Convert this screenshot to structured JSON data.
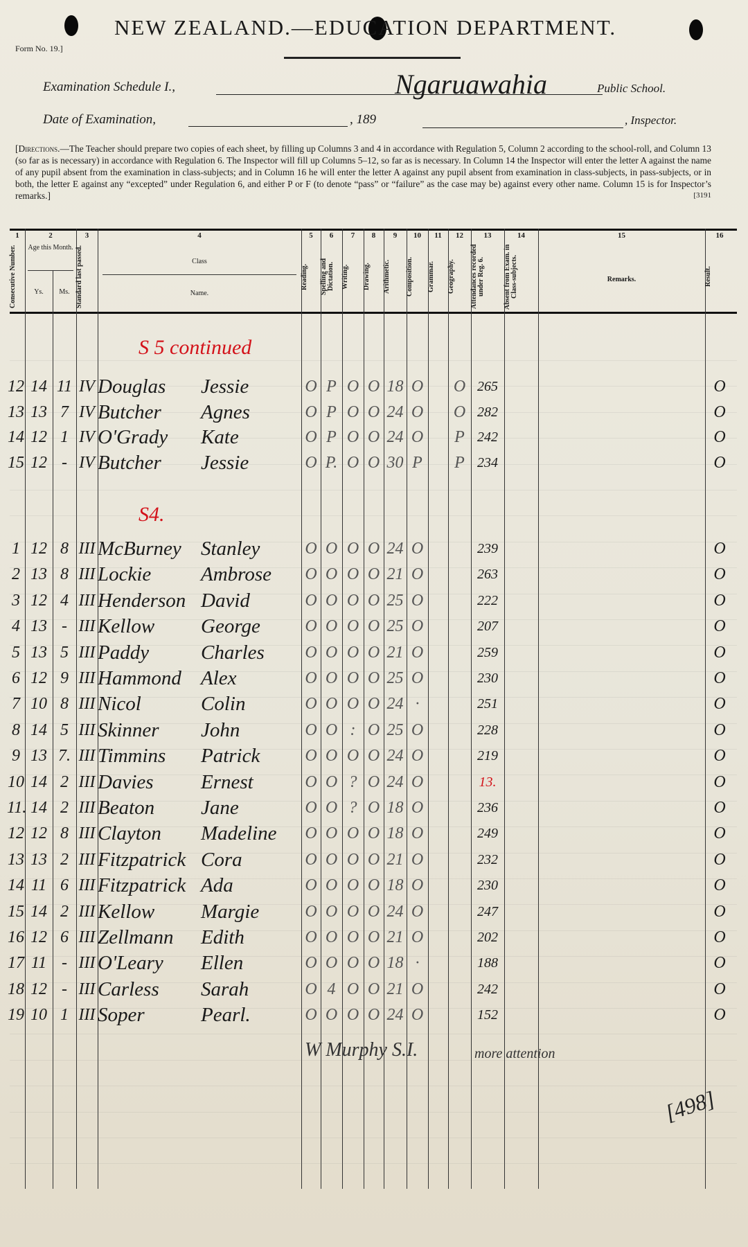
{
  "header": {
    "title": "NEW ZEALAND.—EDUCATION DEPARTMENT.",
    "form_no": "Form No. 19.]",
    "schedule_label": "Examination Schedule I.,",
    "school_name": "Ngaruawahia",
    "school_suffix": "Public School.",
    "date_label": "Date of Examination,",
    "year_prefix": ", 189",
    "inspector_suffix": ", Inspector."
  },
  "directions": {
    "lead": "[Directions.",
    "text": "—The Teacher should prepare two copies of each sheet, by filling up Columns 3 and 4 in accordance with Regulation 5, Column 2 according to the school-roll, and Column 13 (so far as is necessary) in accordance with Regulation 6. The Inspector will fill up Columns 5–12, so far as is necessary. In Column 14 the Inspector will enter the letter A against the name of any pupil absent from the examination in class-subjects; and in Column 16 he will enter the letter A against any pupil absent from examination in class-subjects, in pass-subjects, or in both, the letter E against any “excepted” under Regulation 6, and either P or F (to denote “pass” or “failure” as the case may be) against every other name. Column 15 is for Inspector’s remarks.]",
    "code": "[3191"
  },
  "table_header": {
    "col_numbers": [
      "1",
      "2",
      "3",
      "4",
      "5",
      "6",
      "7",
      "8",
      "9",
      "10",
      "11",
      "12",
      "13",
      "14",
      "15",
      "16"
    ],
    "consecutive": "Consecutive Number.",
    "age": "Age this Month.",
    "yrs": "Ys.",
    "ms": "Ms.",
    "standard": "Standard last passed.",
    "class_label": "Class",
    "name_label": "Name.",
    "reading": "Reading.",
    "spelling": "Spelling and Dictation.",
    "writing": "Writing.",
    "drawing": "Drawing.",
    "arithmetic": "Arithmetic.",
    "composition": "Composition.",
    "grammar": "Grammar.",
    "geography": "Geography.",
    "attendances": "Attendances recorded under Reg. 6.",
    "absent": "Absent from Exam. in Class-subjects.",
    "remarks": "Remarks.",
    "result": "Result."
  },
  "sections": [
    {
      "heading": "S 5 continued",
      "rows": [
        [
          "12",
          "14",
          "11",
          "IV",
          "Douglas",
          "Jessie",
          "O",
          "P",
          "O",
          "O",
          "18",
          "O",
          "",
          "O",
          "265",
          "",
          "O"
        ],
        [
          "13",
          "13",
          "7",
          "IV",
          "Butcher",
          "Agnes",
          "O",
          "P",
          "O",
          "O",
          "24",
          "O",
          "",
          "O",
          "282",
          "",
          "O"
        ],
        [
          "14",
          "12",
          "1",
          "IV",
          "O'Grady",
          "Kate",
          "O",
          "P",
          "O",
          "O",
          "24",
          "O",
          "",
          "P",
          "242",
          "",
          "O"
        ],
        [
          "15",
          "12",
          "-",
          "IV",
          "Butcher",
          "Jessie",
          "O",
          "P.",
          "O",
          "O",
          "30",
          "P",
          "",
          "P",
          "234",
          "",
          "O"
        ]
      ]
    },
    {
      "heading": "S4.",
      "rows": [
        [
          "1",
          "12",
          "8",
          "III",
          "McBurney",
          "Stanley",
          "O",
          "O",
          "O",
          "O",
          "24",
          "O",
          "",
          "",
          "239",
          "",
          "O"
        ],
        [
          "2",
          "13",
          "8",
          "III",
          "Lockie",
          "Ambrose",
          "O",
          "O",
          "O",
          "O",
          "21",
          "O",
          "",
          "",
          "263",
          "",
          "O"
        ],
        [
          "3",
          "12",
          "4",
          "III",
          "Henderson",
          "David",
          "O",
          "O",
          "O",
          "O",
          "25",
          "O",
          "",
          "",
          "222",
          "",
          "O"
        ],
        [
          "4",
          "13",
          "-",
          "III",
          "Kellow",
          "George",
          "O",
          "O",
          "O",
          "O",
          "25",
          "O",
          "",
          "",
          "207",
          "",
          "O"
        ],
        [
          "5",
          "13",
          "5",
          "III",
          "Paddy",
          "Charles",
          "O",
          "O",
          "O",
          "O",
          "21",
          "O",
          "",
          "",
          "259",
          "",
          "O"
        ],
        [
          "6",
          "12",
          "9",
          "III",
          "Hammond",
          "Alex",
          "O",
          "O",
          "O",
          "O",
          "25",
          "O",
          "",
          "",
          "230",
          "",
          "O"
        ],
        [
          "7",
          "10",
          "8",
          "III",
          "Nicol",
          "Colin",
          "O",
          "O",
          "O",
          "O",
          "24",
          "·",
          "",
          "",
          "251",
          "",
          "O"
        ],
        [
          "8",
          "14",
          "5",
          "III",
          "Skinner",
          "John",
          "O",
          "O",
          ":",
          "O",
          "25",
          "O",
          "",
          "",
          "228",
          "",
          "O"
        ],
        [
          "9",
          "13",
          "7.",
          "III",
          "Timmins",
          "Patrick",
          "O",
          "O",
          "O",
          "O",
          "24",
          "O",
          "",
          "",
          "219",
          "",
          "O"
        ],
        [
          "10",
          "14",
          "2",
          "III",
          "Davies",
          "Ernest",
          "O",
          "O",
          "?",
          "O",
          "24",
          "O",
          "",
          "",
          "13.",
          "",
          "O"
        ],
        [
          "11.",
          "14",
          "2",
          "III",
          "Beaton",
          "Jane",
          "O",
          "O",
          "?",
          "O",
          "18",
          "O",
          "",
          "",
          "236",
          "",
          "O"
        ],
        [
          "12",
          "12",
          "8",
          "III",
          "Clayton",
          "Madeline",
          "O",
          "O",
          "O",
          "O",
          "18",
          "O",
          "",
          "",
          "249",
          "",
          "O"
        ],
        [
          "13",
          "13",
          "2",
          "III",
          "Fitzpatrick",
          "Cora",
          "O",
          "O",
          "O",
          "O",
          "21",
          "O",
          "",
          "",
          "232",
          "",
          "O"
        ],
        [
          "14",
          "11",
          "6",
          "III",
          "Fitzpatrick",
          "Ada",
          "O",
          "O",
          "O",
          "O",
          "18",
          "O",
          "",
          "",
          "230",
          "",
          "O"
        ],
        [
          "15",
          "14",
          "2",
          "III",
          "Kellow",
          "Margie",
          "O",
          "O",
          "O",
          "O",
          "24",
          "O",
          "",
          "",
          "247",
          "",
          "O"
        ],
        [
          "16",
          "12",
          "6",
          "III",
          "Zellmann",
          "Edith",
          "O",
          "O",
          "O",
          "O",
          "21",
          "O",
          "",
          "",
          "202",
          "",
          "O"
        ],
        [
          "17",
          "11",
          "-",
          "III",
          "O'Leary",
          "Ellen",
          "O",
          "O",
          "O",
          "O",
          "18",
          "·",
          "",
          "",
          "188",
          "",
          "O"
        ],
        [
          "18",
          "12",
          "-",
          "III",
          "Carless",
          "Sarah",
          "O",
          "4",
          "O",
          "O",
          "21",
          "O",
          "",
          "",
          "242",
          "",
          "O"
        ],
        [
          "19",
          "10",
          "1",
          "III",
          "Soper",
          "Pearl.",
          "O",
          "O",
          "O",
          "O",
          "24",
          "O",
          "",
          "",
          "152",
          "",
          "O"
        ]
      ]
    }
  ],
  "red_values": [
    "13."
  ],
  "footer": {
    "signature": "W Murphy S.I.",
    "remark": "more attention",
    "page_mark": "[498]"
  },
  "colors": {
    "ink": "#1a1a1a",
    "red_ink": "#d3121a",
    "paper": "#e9e6da"
  }
}
